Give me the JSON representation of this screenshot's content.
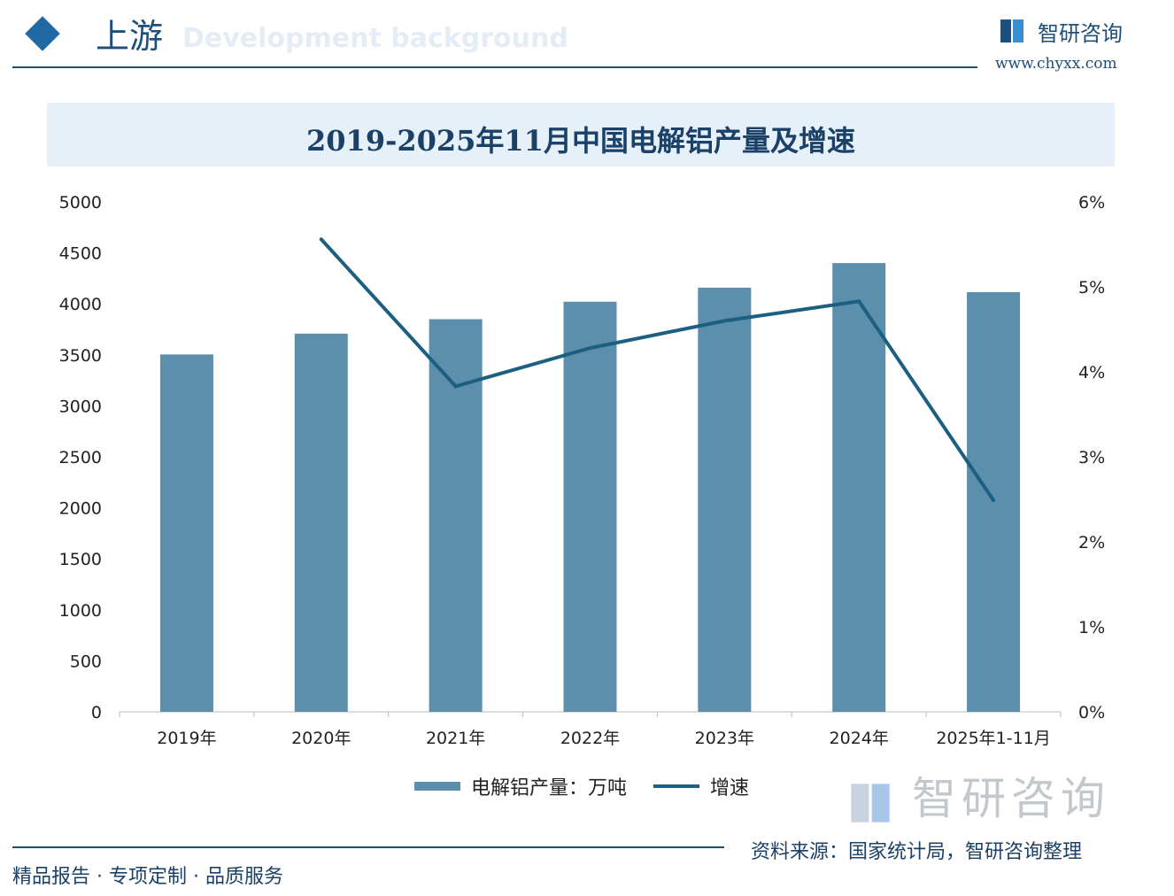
{
  "header": {
    "section": "上游",
    "section_en": "Development background",
    "brand": "智研咨询",
    "url": "www.chyxx.com"
  },
  "chart_data": {
    "type": "bar",
    "title": "2019-2025年11月中国电解铝产量及增速",
    "categories": [
      "2019年",
      "2020年",
      "2021年",
      "2022年",
      "2023年",
      "2024年",
      "2025年1-11月"
    ],
    "series": [
      {
        "name": "电解铝产量：万吨",
        "type": "bar",
        "axis": "left",
        "values": [
          3504,
          3708,
          3850,
          4021,
          4159,
          4400,
          4115
        ]
      },
      {
        "name": "增速",
        "type": "line",
        "axis": "right",
        "values": [
          null,
          5.56,
          3.83,
          4.28,
          4.6,
          4.83,
          2.49
        ]
      }
    ],
    "ylim": [
      0,
      5000
    ],
    "yticks": [
      "0",
      "500",
      "1000",
      "1500",
      "2000",
      "2500",
      "3000",
      "3500",
      "4000",
      "4500",
      "5000"
    ],
    "y2lim": [
      0,
      6
    ],
    "y2ticks": [
      "0%",
      "1%",
      "2%",
      "3%",
      "4%",
      "5%",
      "6%"
    ],
    "grid": false,
    "legend": "bottom",
    "colors": {
      "bar": "#5b8fab",
      "line": "#1d5f80"
    }
  },
  "footer": {
    "source": "资料来源：国家统计局，智研咨询整理",
    "slogan": "精品报告 · 专项定制 · 品质服务",
    "watermark": "智研咨询"
  }
}
